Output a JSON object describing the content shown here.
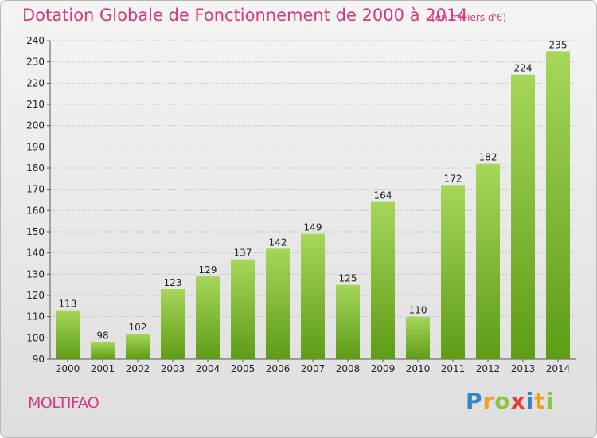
{
  "title": "Dotation Globale de Fonctionnement de 2000 à 2014",
  "subtitle": "(en milliers d'€)",
  "town": "MOLTIFAO",
  "logo": {
    "letters": [
      "P",
      "r",
      "o",
      "x",
      "i",
      "t",
      "i"
    ],
    "colors": [
      "#2f86c8",
      "#f0a020",
      "#8cc63f",
      "#e83c3c",
      "#2f86c8",
      "#f0a020",
      "#8cc63f"
    ]
  },
  "colors": {
    "bar_light": "#a6d65a",
    "bar_dark": "#5e9c16",
    "accent": "#d33a78"
  },
  "chart_data": {
    "type": "bar",
    "categories": [
      "2000",
      "2001",
      "2002",
      "2003",
      "2004",
      "2005",
      "2006",
      "2007",
      "2008",
      "2009",
      "2010",
      "2011",
      "2012",
      "2013",
      "2014"
    ],
    "values": [
      113,
      98,
      102,
      123,
      129,
      137,
      142,
      149,
      125,
      164,
      110,
      172,
      182,
      224,
      235
    ],
    "title": "Dotation Globale de Fonctionnement de 2000 à 2014",
    "xlabel": "",
    "ylabel": "",
    "ylim": [
      90,
      240
    ],
    "yticks": [
      90,
      100,
      110,
      120,
      130,
      140,
      150,
      160,
      170,
      180,
      190,
      200,
      210,
      220,
      230,
      240
    ],
    "grid": true,
    "legend": "none"
  }
}
